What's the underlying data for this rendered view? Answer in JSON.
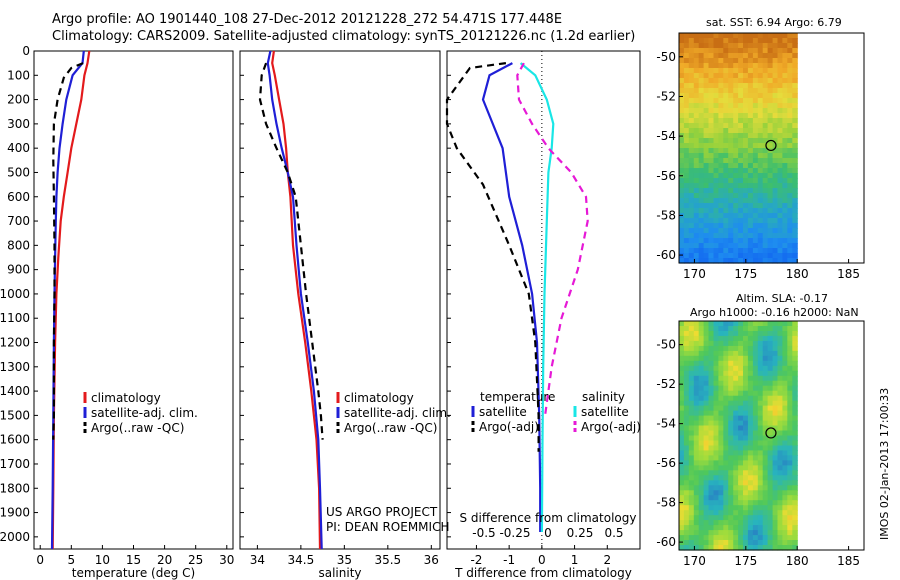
{
  "header": {
    "line1": "Argo profile: AO 1901440_108 27-Dec-2012 20121228_272 54.471S 177.448E",
    "line2": "Climatology: CARS2009. Satellite-adjusted climatology: synTS_20121226.nc (1.2d earlier)"
  },
  "colors": {
    "climatology": "#e31a1c",
    "satellite": "#1f1fd6",
    "argo": "#000000",
    "sal_satellite": "#19e6e6",
    "sal_argo": "#e619d6"
  },
  "chart_data": [
    {
      "type": "line",
      "title": "",
      "xlabel": "temperature (deg C)",
      "ylabel": "",
      "xlim": [
        -1,
        31
      ],
      "ylim": [
        2050,
        0
      ],
      "xticks": [
        0,
        5,
        10,
        15,
        20,
        25,
        30
      ],
      "yticks": [
        0,
        100,
        200,
        300,
        400,
        500,
        600,
        700,
        800,
        900,
        1000,
        1100,
        1200,
        1300,
        1400,
        1500,
        1600,
        1700,
        1800,
        1900,
        2000
      ],
      "legend": {
        "placement": "bottom-center",
        "entries": [
          "climatology",
          "satellite-adj. clim.",
          "Argo(..raw -QC)"
        ]
      },
      "series": [
        {
          "name": "climatology",
          "style": "solid",
          "color": "#e31a1c",
          "points": [
            [
              7.9,
              0
            ],
            [
              7.6,
              50
            ],
            [
              7.1,
              100
            ],
            [
              6.6,
              200
            ],
            [
              5.8,
              300
            ],
            [
              5.0,
              400
            ],
            [
              4.4,
              500
            ],
            [
              3.8,
              600
            ],
            [
              3.3,
              700
            ],
            [
              2.9,
              850
            ],
            [
              2.6,
              1000
            ],
            [
              2.4,
              1200
            ],
            [
              2.2,
              1500
            ],
            [
              2.1,
              1800
            ],
            [
              2.0,
              2050
            ]
          ]
        },
        {
          "name": "satellite-adj. clim.",
          "style": "solid",
          "color": "#1f1fd6",
          "points": [
            [
              7.0,
              0
            ],
            [
              6.8,
              50
            ],
            [
              5.2,
              100
            ],
            [
              4.2,
              200
            ],
            [
              3.6,
              300
            ],
            [
              3.1,
              400
            ],
            [
              2.8,
              500
            ],
            [
              2.6,
              600
            ],
            [
              2.5,
              700
            ],
            [
              2.4,
              850
            ],
            [
              2.3,
              1000
            ],
            [
              2.2,
              1200
            ],
            [
              2.1,
              1500
            ],
            [
              2.0,
              1800
            ],
            [
              1.9,
              2050
            ]
          ]
        },
        {
          "name": "Argo(..raw -QC)",
          "style": "dashed",
          "color": "#000000",
          "points": [
            [
              6.9,
              50
            ],
            [
              5.0,
              70
            ],
            [
              3.8,
              110
            ],
            [
              2.8,
              200
            ],
            [
              2.2,
              300
            ],
            [
              2.1,
              450
            ],
            [
              2.2,
              600
            ],
            [
              2.3,
              800
            ],
            [
              2.3,
              1000
            ],
            [
              2.2,
              1200
            ],
            [
              2.2,
              1500
            ],
            [
              2.1,
              1600
            ]
          ]
        }
      ]
    },
    {
      "type": "line",
      "title": "",
      "xlabel": "salinity",
      "ylabel": "",
      "xlim": [
        33.8,
        36.1
      ],
      "ylim": [
        2050,
        0
      ],
      "xticks": [
        34,
        34.5,
        35,
        35.5,
        36
      ],
      "legend": {
        "placement": "bottom-center",
        "entries": [
          "climatology",
          "satellite-adj. clim.",
          "Argo(..raw -QC)"
        ]
      },
      "annotations": [
        "US ARGO PROJECT",
        "PI: DEAN ROEMMICH"
      ],
      "series": [
        {
          "name": "climatology",
          "style": "solid",
          "color": "#e31a1c",
          "points": [
            [
              34.19,
              0
            ],
            [
              34.17,
              50
            ],
            [
              34.2,
              100
            ],
            [
              34.25,
              200
            ],
            [
              34.3,
              300
            ],
            [
              34.33,
              400
            ],
            [
              34.35,
              500
            ],
            [
              34.38,
              600
            ],
            [
              34.41,
              800
            ],
            [
              34.47,
              1000
            ],
            [
              34.55,
              1200
            ],
            [
              34.62,
              1400
            ],
            [
              34.68,
              1600
            ],
            [
              34.71,
              1800
            ],
            [
              34.72,
              2050
            ]
          ]
        },
        {
          "name": "satellite-adj. clim.",
          "style": "solid",
          "color": "#1f1fd6",
          "points": [
            [
              34.15,
              0
            ],
            [
              34.12,
              50
            ],
            [
              34.14,
              100
            ],
            [
              34.17,
              200
            ],
            [
              34.22,
              300
            ],
            [
              34.28,
              400
            ],
            [
              34.35,
              500
            ],
            [
              34.41,
              600
            ],
            [
              34.45,
              800
            ],
            [
              34.5,
              1000
            ],
            [
              34.58,
              1200
            ],
            [
              34.65,
              1400
            ],
            [
              34.7,
              1600
            ],
            [
              34.72,
              1800
            ],
            [
              34.74,
              2050
            ]
          ]
        },
        {
          "name": "Argo(..raw -QC)",
          "style": "dashed",
          "color": "#000000",
          "points": [
            [
              34.1,
              50
            ],
            [
              34.05,
              100
            ],
            [
              34.03,
              200
            ],
            [
              34.1,
              300
            ],
            [
              34.22,
              400
            ],
            [
              34.35,
              500
            ],
            [
              34.44,
              600
            ],
            [
              34.5,
              800
            ],
            [
              34.56,
              1000
            ],
            [
              34.63,
              1200
            ],
            [
              34.7,
              1400
            ],
            [
              34.73,
              1500
            ],
            [
              34.75,
              1600
            ]
          ]
        }
      ]
    },
    {
      "type": "line",
      "title": "",
      "xlabel": "T difference from climatology",
      "x2label": "S difference from climatology",
      "ylabel": "",
      "xlim": [
        -2.9,
        3.0
      ],
      "ylim": [
        2050,
        0
      ],
      "xticks": [
        -2,
        -1,
        0,
        1,
        2
      ],
      "x2ticks": [
        "-0.5",
        "-0.25",
        "0",
        "0.25",
        "0.5"
      ],
      "legend": {
        "placement": "bottom",
        "temperature_header": "temperature",
        "salinity_header": "salinity",
        "entries": [
          "satellite",
          "Argo(-adj)",
          "satellite",
          "Argo(-adj)"
        ]
      },
      "series": [
        {
          "name": "temperature satellite",
          "style": "solid",
          "color": "#1f1fd6",
          "points": [
            [
              -0.9,
              50
            ],
            [
              -1.6,
              100
            ],
            [
              -1.8,
              200
            ],
            [
              -1.5,
              300
            ],
            [
              -1.2,
              400
            ],
            [
              -1.0,
              600
            ],
            [
              -0.6,
              800
            ],
            [
              -0.3,
              1000
            ],
            [
              -0.15,
              1200
            ],
            [
              -0.08,
              1500
            ],
            [
              -0.05,
              1800
            ],
            [
              -0.05,
              1980
            ]
          ]
        },
        {
          "name": "temperature Argo(-adj)",
          "style": "dashed",
          "color": "#000000",
          "points": [
            [
              -1.1,
              50
            ],
            [
              -2.2,
              70
            ],
            [
              -2.9,
              200
            ],
            [
              -2.9,
              300
            ],
            [
              -2.6,
              400
            ],
            [
              -1.8,
              550
            ],
            [
              -1.0,
              800
            ],
            [
              -0.4,
              1000
            ],
            [
              -0.2,
              1200
            ],
            [
              -0.1,
              1500
            ],
            [
              -0.1,
              1650
            ]
          ]
        },
        {
          "name": "salinity satellite",
          "style": "solid",
          "color": "#19e6e6",
          "points": [
            [
              -0.65,
              50
            ],
            [
              -0.2,
              100
            ],
            [
              0.15,
              200
            ],
            [
              0.35,
              300
            ],
            [
              0.3,
              400
            ],
            [
              0.2,
              500
            ],
            [
              0.15,
              700
            ],
            [
              0.08,
              1000
            ],
            [
              0.04,
              1300
            ],
            [
              0.02,
              1600
            ],
            [
              0.0,
              1980
            ]
          ]
        },
        {
          "name": "salinity Argo(-adj)",
          "style": "dashed",
          "color": "#e619d6",
          "points": [
            [
              -0.55,
              50
            ],
            [
              -0.75,
              100
            ],
            [
              -0.7,
              200
            ],
            [
              -0.3,
              300
            ],
            [
              0.2,
              400
            ],
            [
              0.9,
              500
            ],
            [
              1.35,
              600
            ],
            [
              1.4,
              700
            ],
            [
              1.1,
              900
            ],
            [
              0.6,
              1100
            ],
            [
              0.3,
              1300
            ],
            [
              0.1,
              1500
            ]
          ]
        }
      ]
    },
    {
      "type": "heatmap",
      "title": "sat. SST: 6.94  Argo: 6.79",
      "xlim": [
        168.5,
        186.5
      ],
      "ylim": [
        -60.4,
        -48.8
      ],
      "xticks": [
        170,
        175,
        180,
        185
      ],
      "yticks": [
        -50,
        -52,
        -54,
        -56,
        -58,
        -60
      ],
      "marker": {
        "lon": 177.448,
        "lat": -54.471
      },
      "colorscale": "sst (warm north, cool south)"
    },
    {
      "type": "heatmap",
      "title": "Altim. SLA: -0.17",
      "subtitle": "Argo h1000: -0.16 h2000: NaN",
      "xlim": [
        168.5,
        186.5
      ],
      "ylim": [
        -60.4,
        -48.8
      ],
      "xticks": [
        170,
        175,
        180,
        185
      ],
      "yticks": [
        -50,
        -52,
        -54,
        -56,
        -58,
        -60
      ],
      "marker": {
        "lon": 177.448,
        "lat": -54.471
      },
      "colorscale": "sea level anomaly"
    }
  ],
  "footer": {
    "vertical_label": "IMOS 02-Jan-2013 17:00:33"
  }
}
